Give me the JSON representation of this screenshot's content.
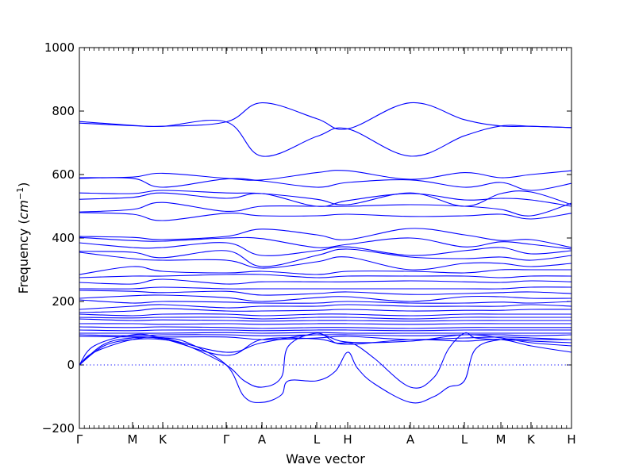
{
  "chart_data": {
    "type": "line",
    "title": "",
    "xlabel": "Wave vector",
    "ylabel_prefix": "Frequency (",
    "ylabel_unit": "cm",
    "ylabel_exp": "−1",
    "ylabel_suffix": ")",
    "ylim": [
      -200,
      1000
    ],
    "yticks": [
      -200,
      0,
      200,
      400,
      600,
      800,
      1000
    ],
    "yticks_labels": [
      "−200",
      "0",
      "200",
      "400",
      "600",
      "800",
      "1000"
    ],
    "xlim": [
      0,
      1
    ],
    "xticks": [
      {
        "x": 0.0,
        "label": "Γ"
      },
      {
        "x": 0.1081,
        "label": "M"
      },
      {
        "x": 0.1694,
        "label": "K"
      },
      {
        "x": 0.2984,
        "label": "Γ"
      },
      {
        "x": 0.371,
        "label": "A"
      },
      {
        "x": 0.4823,
        "label": "L"
      },
      {
        "x": 0.5452,
        "label": "H"
      },
      {
        "x": 0.6726,
        "label": "A"
      },
      {
        "x": 0.7823,
        "label": "L"
      },
      {
        "x": 0.8565,
        "label": "M"
      },
      {
        "x": 0.9177,
        "label": "K"
      },
      {
        "x": 1.0,
        "label": "H"
      }
    ],
    "zero_line": true,
    "line_color": "#0000ff",
    "series": [
      {
        "x": [
          0.0,
          0.1081,
          0.1694,
          0.2984,
          0.371,
          0.4823,
          0.5452,
          0.6726,
          0.7823,
          0.8565,
          0.9177,
          1.0
        ],
        "y": [
          767,
          755,
          752,
          766,
          658,
          720,
          744,
          658,
          722,
          753,
          752,
          748
        ]
      },
      {
        "x": [
          0.0,
          0.1081,
          0.1694,
          0.2984,
          0.371,
          0.4823,
          0.5452,
          0.6726,
          0.7823,
          0.8565,
          0.9177,
          1.0
        ],
        "y": [
          762,
          754,
          752,
          766,
          826,
          776,
          744,
          826,
          773,
          753,
          752,
          748
        ]
      },
      {
        "x": [
          0.0,
          0.1081,
          0.1694,
          0.2984,
          0.371,
          0.4823,
          0.5452,
          0.6726,
          0.7823,
          0.8565,
          0.9177,
          1.0
        ],
        "y": [
          590,
          592,
          604,
          588,
          583,
          606,
          612,
          585,
          606,
          590,
          600,
          612
        ]
      },
      {
        "x": [
          0.0,
          0.1081,
          0.1694,
          0.2984,
          0.371,
          0.4823,
          0.5452,
          0.6726,
          0.7823,
          0.8565,
          0.9177,
          1.0
        ],
        "y": [
          588,
          588,
          560,
          586,
          580,
          560,
          575,
          583,
          560,
          575,
          550,
          572
        ]
      },
      {
        "x": [
          0.0,
          0.1081,
          0.1694,
          0.2984,
          0.371,
          0.4823,
          0.5452,
          0.6726,
          0.7823,
          0.8565,
          0.9177,
          1.0
        ],
        "y": [
          542,
          540,
          550,
          542,
          540,
          522,
          505,
          542,
          500,
          540,
          545,
          505
        ]
      },
      {
        "x": [
          0.0,
          0.1081,
          0.1694,
          0.2984,
          0.371,
          0.4823,
          0.5452,
          0.6726,
          0.7823,
          0.8565,
          0.9177,
          1.0
        ],
        "y": [
          522,
          528,
          542,
          525,
          540,
          500,
          518,
          540,
          520,
          525,
          520,
          500
        ]
      },
      {
        "x": [
          0.0,
          0.1081,
          0.1694,
          0.2984,
          0.371,
          0.4823,
          0.5452,
          0.6726,
          0.7823,
          0.8565,
          0.9177,
          1.0
        ],
        "y": [
          482,
          490,
          512,
          484,
          500,
          500,
          500,
          505,
          500,
          490,
          470,
          510
        ]
      },
      {
        "x": [
          0.0,
          0.1081,
          0.1694,
          0.2984,
          0.371,
          0.4823,
          0.5452,
          0.6726,
          0.7823,
          0.8565,
          0.9177,
          1.0
        ],
        "y": [
          480,
          475,
          455,
          478,
          470,
          470,
          475,
          468,
          470,
          475,
          460,
          478
        ]
      },
      {
        "x": [
          0.0,
          0.1081,
          0.1694,
          0.2984,
          0.371,
          0.4823,
          0.5452,
          0.6726,
          0.7823,
          0.8565,
          0.9177,
          1.0
        ],
        "y": [
          405,
          402,
          395,
          405,
          428,
          410,
          395,
          430,
          410,
          392,
          395,
          370
        ]
      },
      {
        "x": [
          0.0,
          0.1081,
          0.1694,
          0.2984,
          0.371,
          0.4823,
          0.5452,
          0.6726,
          0.7823,
          0.8565,
          0.9177,
          1.0
        ],
        "y": [
          402,
          392,
          390,
          400,
          398,
          370,
          380,
          400,
          372,
          388,
          380,
          365
        ]
      },
      {
        "x": [
          0.0,
          0.1081,
          0.1694,
          0.2984,
          0.371,
          0.4823,
          0.5452,
          0.6726,
          0.7823,
          0.8565,
          0.9177,
          1.0
        ],
        "y": [
          385,
          370,
          370,
          385,
          345,
          360,
          372,
          345,
          360,
          370,
          350,
          360
        ]
      },
      {
        "x": [
          0.0,
          0.1081,
          0.1694,
          0.2984,
          0.371,
          0.4823,
          0.5452,
          0.6726,
          0.7823,
          0.8565,
          0.9177,
          1.0
        ],
        "y": [
          358,
          355,
          338,
          360,
          310,
          345,
          365,
          340,
          335,
          340,
          330,
          345
        ]
      },
      {
        "x": [
          0.0,
          0.1081,
          0.1694,
          0.2984,
          0.371,
          0.4823,
          0.5452,
          0.6726,
          0.7823,
          0.8565,
          0.9177,
          1.0
        ],
        "y": [
          355,
          335,
          330,
          330,
          305,
          325,
          340,
          300,
          320,
          320,
          310,
          320
        ]
      },
      {
        "x": [
          0.0,
          0.1081,
          0.1694,
          0.2984,
          0.371,
          0.4823,
          0.5452,
          0.6726,
          0.7823,
          0.8565,
          0.9177,
          1.0
        ],
        "y": [
          285,
          310,
          295,
          290,
          295,
          285,
          295,
          295,
          290,
          300,
          300,
          300
        ]
      },
      {
        "x": [
          0.0,
          0.1081,
          0.1694,
          0.2984,
          0.371,
          0.4823,
          0.5452,
          0.6726,
          0.7823,
          0.8565,
          0.9177,
          1.0
        ],
        "y": [
          275,
          280,
          280,
          285,
          285,
          275,
          280,
          280,
          280,
          275,
          280,
          280
        ]
      },
      {
        "x": [
          0.0,
          0.1081,
          0.1694,
          0.2984,
          0.371,
          0.4823,
          0.5452,
          0.6726,
          0.7823,
          0.8565,
          0.9177,
          1.0
        ],
        "y": [
          260,
          255,
          270,
          255,
          262,
          262,
          262,
          265,
          262,
          260,
          265,
          262
        ]
      },
      {
        "x": [
          0.0,
          0.1081,
          0.1694,
          0.2984,
          0.371,
          0.4823,
          0.5452,
          0.6726,
          0.7823,
          0.8565,
          0.9177,
          1.0
        ],
        "y": [
          240,
          240,
          245,
          240,
          240,
          240,
          240,
          240,
          240,
          240,
          245,
          245
        ]
      },
      {
        "x": [
          0.0,
          0.1081,
          0.1694,
          0.2984,
          0.371,
          0.4823,
          0.5452,
          0.6726,
          0.7823,
          0.8565,
          0.9177,
          1.0
        ],
        "y": [
          235,
          232,
          228,
          232,
          220,
          225,
          230,
          222,
          225,
          228,
          230,
          225
        ]
      },
      {
        "x": [
          0.0,
          0.1081,
          0.1694,
          0.2984,
          0.371,
          0.4823,
          0.5452,
          0.6726,
          0.7823,
          0.8565,
          0.9177,
          1.0
        ],
        "y": [
          210,
          218,
          220,
          212,
          200,
          212,
          215,
          200,
          215,
          215,
          210,
          210
        ]
      },
      {
        "x": [
          0.0,
          0.1081,
          0.1694,
          0.2984,
          0.371,
          0.4823,
          0.5452,
          0.6726,
          0.7823,
          0.8565,
          0.9177,
          1.0
        ],
        "y": [
          205,
          195,
          200,
          198,
          195,
          195,
          200,
          195,
          195,
          198,
          195,
          200
        ]
      },
      {
        "x": [
          0.0,
          0.1081,
          0.1694,
          0.2984,
          0.371,
          0.4823,
          0.5452,
          0.6726,
          0.7823,
          0.8565,
          0.9177,
          1.0
        ],
        "y": [
          175,
          185,
          190,
          180,
          185,
          185,
          190,
          185,
          185,
          185,
          190,
          185
        ]
      },
      {
        "x": [
          0.0,
          0.1081,
          0.1694,
          0.2984,
          0.371,
          0.4823,
          0.5452,
          0.6726,
          0.7823,
          0.8565,
          0.9177,
          1.0
        ],
        "y": [
          165,
          170,
          178,
          170,
          170,
          172,
          175,
          170,
          172,
          172,
          175,
          175
        ]
      },
      {
        "x": [
          0.0,
          0.1081,
          0.1694,
          0.2984,
          0.371,
          0.4823,
          0.5452,
          0.6726,
          0.7823,
          0.8565,
          0.9177,
          1.0
        ],
        "y": [
          160,
          155,
          160,
          160,
          155,
          160,
          160,
          155,
          160,
          160,
          160,
          160
        ]
      },
      {
        "x": [
          0.0,
          0.1081,
          0.1694,
          0.2984,
          0.371,
          0.4823,
          0.5452,
          0.6726,
          0.7823,
          0.8565,
          0.9177,
          1.0
        ],
        "y": [
          150,
          148,
          150,
          150,
          145,
          150,
          150,
          145,
          150,
          150,
          150,
          150
        ]
      },
      {
        "x": [
          0.0,
          0.1081,
          0.1694,
          0.2984,
          0.371,
          0.4823,
          0.5452,
          0.6726,
          0.7823,
          0.8565,
          0.9177,
          1.0
        ],
        "y": [
          145,
          140,
          142,
          140,
          138,
          140,
          140,
          138,
          140,
          140,
          140,
          140
        ]
      },
      {
        "x": [
          0.0,
          0.1081,
          0.1694,
          0.2984,
          0.371,
          0.4823,
          0.5452,
          0.6726,
          0.7823,
          0.8565,
          0.9177,
          1.0
        ],
        "y": [
          130,
          130,
          128,
          130,
          128,
          130,
          130,
          128,
          130,
          130,
          130,
          130
        ]
      },
      {
        "x": [
          0.0,
          0.1081,
          0.1694,
          0.2984,
          0.371,
          0.4823,
          0.5452,
          0.6726,
          0.7823,
          0.8565,
          0.9177,
          1.0
        ],
        "y": [
          120,
          118,
          120,
          118,
          115,
          118,
          118,
          115,
          118,
          118,
          118,
          118
        ]
      },
      {
        "x": [
          0.0,
          0.1081,
          0.1694,
          0.2984,
          0.371,
          0.4823,
          0.5452,
          0.6726,
          0.7823,
          0.8565,
          0.9177,
          1.0
        ],
        "y": [
          110,
          108,
          110,
          110,
          108,
          110,
          110,
          108,
          110,
          110,
          110,
          110
        ]
      },
      {
        "x": [
          0.0,
          0.1081,
          0.1694,
          0.2984,
          0.371,
          0.4823,
          0.5452,
          0.6726,
          0.7823,
          0.8565,
          0.9177,
          1.0
        ],
        "y": [
          100,
          100,
          100,
          102,
          100,
          102,
          100,
          100,
          100,
          100,
          100,
          100
        ]
      },
      {
        "x": [
          0.0,
          0.1081,
          0.1694,
          0.2984,
          0.371,
          0.4823,
          0.5452,
          0.6726,
          0.7823,
          0.8565,
          0.9177,
          1.0
        ],
        "y": [
          95,
          92,
          95,
          95,
          92,
          95,
          95,
          92,
          95,
          95,
          92,
          95
        ]
      },
      {
        "x": [
          0.0,
          0.1081,
          0.1694,
          0.2984,
          0.371,
          0.4823,
          0.5452,
          0.6726,
          0.7823,
          0.8565,
          0.9177,
          1.0
        ],
        "y": [
          90,
          88,
          88,
          88,
          80,
          85,
          90,
          80,
          85,
          88,
          85,
          80
        ]
      },
      {
        "x": [
          0.0,
          0.03,
          0.1081,
          0.1694,
          0.2984,
          0.371,
          0.4823,
          0.5452,
          0.6726,
          0.7823,
          0.8565,
          0.9177,
          1.0
        ],
        "y": [
          0,
          60,
          95,
          85,
          40,
          70,
          95,
          72,
          75,
          95,
          85,
          70,
          60
        ]
      },
      {
        "x": [
          0.0,
          0.03,
          0.1081,
          0.1694,
          0.2984,
          0.371,
          0.4823,
          0.5452,
          0.6726,
          0.7823,
          0.8565,
          0.9177,
          1.0
        ],
        "y": [
          0,
          40,
          80,
          82,
          30,
          80,
          82,
          65,
          80,
          75,
          80,
          60,
          40
        ]
      },
      {
        "x": [
          0.0,
          0.05,
          0.1081,
          0.1694,
          0.22,
          0.2984,
          0.335,
          0.371,
          0.41,
          0.425,
          0.4823,
          0.52,
          0.5452,
          0.565,
          0.6,
          0.6726,
          0.72,
          0.75,
          0.7823,
          0.805,
          0.8565,
          0.9177,
          1.0
        ],
        "y": [
          0,
          65,
          85,
          85,
          70,
          0,
          -100,
          -118,
          -95,
          -50,
          -50,
          -20,
          40,
          -10,
          -60,
          -118,
          -100,
          -70,
          -50,
          50,
          80,
          80,
          80
        ]
      },
      {
        "x": [
          0.0,
          0.05,
          0.1081,
          0.1694,
          0.22,
          0.2984,
          0.335,
          0.371,
          0.41,
          0.425,
          0.4823,
          0.52,
          0.5452,
          0.565,
          0.6,
          0.6726,
          0.72,
          0.75,
          0.7823,
          0.805,
          0.8565,
          0.9177,
          1.0
        ],
        "y": [
          0,
          60,
          80,
          80,
          60,
          0,
          -50,
          -70,
          -40,
          60,
          100,
          70,
          70,
          60,
          20,
          -70,
          -40,
          50,
          100,
          85,
          80,
          75,
          70
        ]
      }
    ]
  }
}
